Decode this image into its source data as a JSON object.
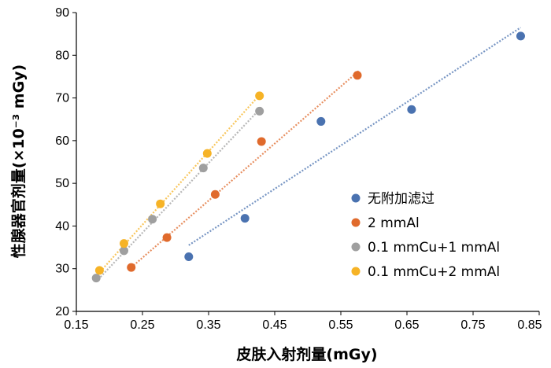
{
  "chart_data": {
    "type": "scatter",
    "xlabel": "皮肤入射剂量(mGy)",
    "ylabel": "性腺器官剂量(×10⁻³ mGy)",
    "xlim": [
      0.15,
      0.85
    ],
    "ylim": [
      20,
      90
    ],
    "x_ticks": [
      "0.15",
      "0.25",
      "0.35",
      "0.45",
      "0.55",
      "0.65",
      "0.75",
      "0.85"
    ],
    "y_ticks": [
      "20",
      "30",
      "40",
      "50",
      "60",
      "70",
      "80",
      "90"
    ],
    "grid": false,
    "legend_position": "right",
    "series": [
      {
        "name": "无附加滤过",
        "color": "#4a72b0",
        "points": [
          [
            0.32,
            32.8
          ],
          [
            0.405,
            41.8
          ],
          [
            0.52,
            64.5
          ],
          [
            0.657,
            67.3
          ],
          [
            0.822,
            84.5
          ]
        ],
        "trendline": [
          [
            0.32,
            35.5
          ],
          [
            0.822,
            86.5
          ]
        ]
      },
      {
        "name": "2 mmAl",
        "color": "#e06a2c",
        "points": [
          [
            0.233,
            30.3
          ],
          [
            0.287,
            37.3
          ],
          [
            0.36,
            47.4
          ],
          [
            0.43,
            59.8
          ],
          [
            0.575,
            75.3
          ]
        ],
        "trendline": [
          [
            0.233,
            30.3
          ],
          [
            0.577,
            76.3
          ]
        ]
      },
      {
        "name": "0.1 mmCu+1 mmAl",
        "color": "#9f9f9f",
        "points": [
          [
            0.18,
            27.8
          ],
          [
            0.222,
            34.2
          ],
          [
            0.265,
            41.6
          ],
          [
            0.342,
            53.6
          ],
          [
            0.427,
            66.9
          ]
        ],
        "trendline": [
          [
            0.18,
            27.0
          ],
          [
            0.43,
            67.8
          ]
        ]
      },
      {
        "name": "0.1 mmCu+2 mmAl",
        "color": "#f6b326",
        "points": [
          [
            0.185,
            29.6
          ],
          [
            0.222,
            35.9
          ],
          [
            0.277,
            45.2
          ],
          [
            0.348,
            57.0
          ],
          [
            0.427,
            70.5
          ]
        ],
        "trendline": [
          [
            0.183,
            28.8
          ],
          [
            0.43,
            71.2
          ]
        ]
      }
    ]
  }
}
